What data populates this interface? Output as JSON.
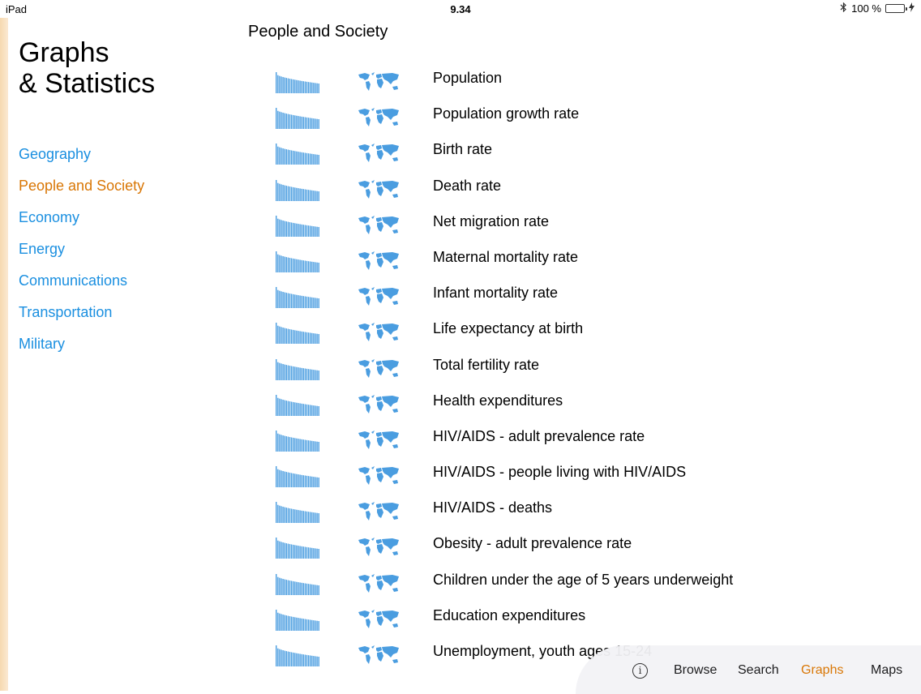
{
  "status_bar": {
    "device": "iPad",
    "time": "9.34",
    "battery": "100 %"
  },
  "sidebar": {
    "title_line1": "Graphs",
    "title_line2": "& Statistics",
    "items": [
      {
        "label": "Geography"
      },
      {
        "label": "People and Society"
      },
      {
        "label": "Economy"
      },
      {
        "label": "Energy"
      },
      {
        "label": "Communications"
      },
      {
        "label": "Transportation"
      },
      {
        "label": "Military"
      }
    ],
    "active_index": 1
  },
  "main": {
    "section_title": "People and Society",
    "rows": [
      {
        "label": "Population"
      },
      {
        "label": "Population growth rate"
      },
      {
        "label": "Birth rate"
      },
      {
        "label": "Death rate"
      },
      {
        "label": "Net migration rate"
      },
      {
        "label": "Maternal mortality rate"
      },
      {
        "label": "Infant mortality rate"
      },
      {
        "label": "Life expectancy at birth"
      },
      {
        "label": "Total fertility rate"
      },
      {
        "label": "Health expenditures"
      },
      {
        "label": "HIV/AIDS - adult prevalence rate"
      },
      {
        "label": "HIV/AIDS - people living with HIV/AIDS"
      },
      {
        "label": "HIV/AIDS - deaths"
      },
      {
        "label": "Obesity - adult prevalence rate"
      },
      {
        "label": "Children under the age of 5 years underweight"
      },
      {
        "label": "Education expenditures"
      },
      {
        "label": "Unemployment, youth ages 15-24"
      }
    ]
  },
  "tabbar": {
    "info_icon": "info-icon",
    "tabs": [
      {
        "label": "Browse"
      },
      {
        "label": "Search"
      },
      {
        "label": "Graphs"
      },
      {
        "label": "Maps"
      }
    ],
    "active_index": 2
  },
  "colors": {
    "accent_blue": "#1a8fe0",
    "active_orange": "#d97706",
    "thumb_blue": "#4a9de0"
  }
}
